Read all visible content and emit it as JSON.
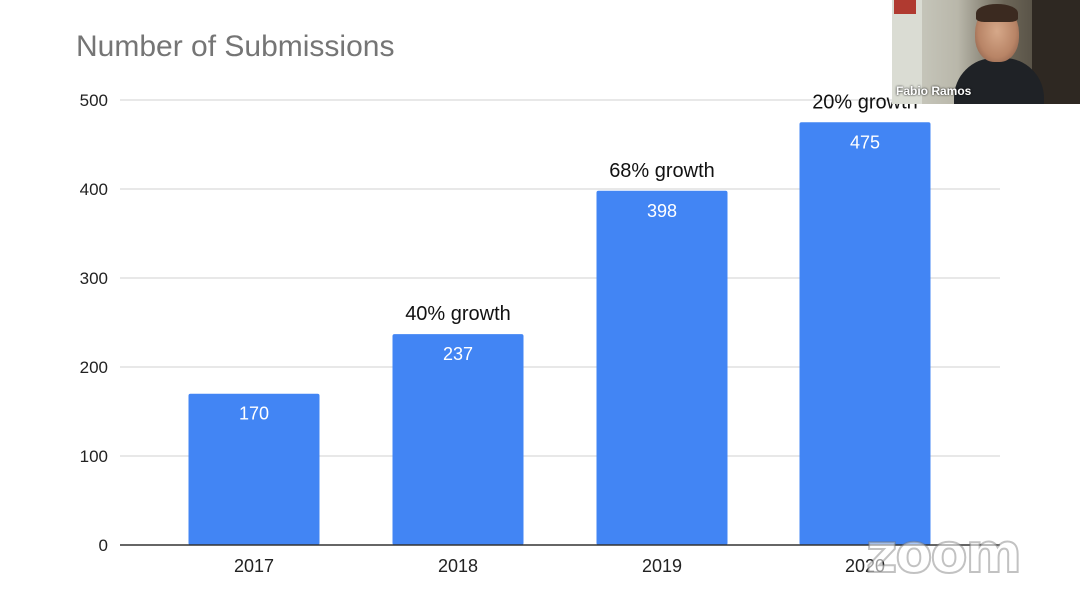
{
  "chart_data": {
    "type": "bar",
    "title": "Number of Submissions",
    "categories": [
      "2017",
      "2018",
      "2019",
      "2020"
    ],
    "values": [
      170,
      237,
      398,
      475
    ],
    "value_labels": [
      "170",
      "237",
      "398",
      "475"
    ],
    "annotations": [
      "",
      "40% growth",
      "68% growth",
      "20% growth"
    ],
    "yticks": [
      0,
      100,
      200,
      300,
      400,
      500
    ],
    "ylim": [
      0,
      500
    ],
    "grid": true,
    "bar_color": "#4285f4",
    "xlabel": "",
    "ylabel": ""
  },
  "overlay": {
    "participant_name": "Fabio Ramos",
    "watermark": "zoom"
  }
}
